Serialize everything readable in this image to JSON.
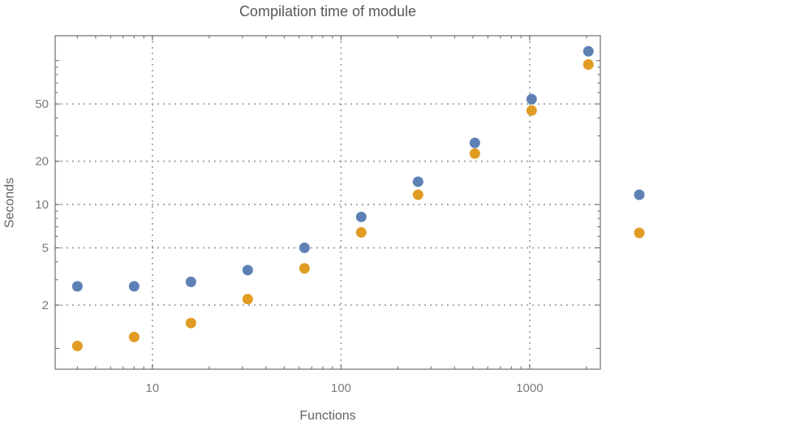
{
  "chart_data": {
    "type": "scatter",
    "title": "Compilation time of module",
    "xlabel": "Functions",
    "ylabel": "Seconds",
    "xscale": "log",
    "yscale": "log",
    "xlim": [
      3.05,
      2370
    ],
    "ylim": [
      0.717,
      149
    ],
    "grid": "dotted lines at labeled major ticks",
    "x": [
      4,
      8,
      16,
      32,
      64,
      128,
      256,
      512,
      1024,
      2048
    ],
    "series": [
      {
        "name": "series-blue",
        "color": "#5e81b5",
        "marker": "filled-circle",
        "values": [
          2.7,
          2.7,
          2.9,
          3.5,
          5.0,
          8.2,
          14.4,
          26.8,
          54,
          116
        ]
      },
      {
        "name": "series-orange",
        "color": "#e19c24",
        "marker": "filled-circle",
        "values": [
          1.04,
          1.2,
          1.5,
          2.2,
          3.6,
          6.4,
          11.7,
          22.6,
          45,
          94
        ]
      }
    ],
    "x_ticks": {
      "major": [
        10,
        100,
        1000
      ],
      "labels": [
        "10",
        "100",
        "1000"
      ],
      "minor": [
        4,
        5,
        6,
        7,
        8,
        9,
        20,
        30,
        40,
        50,
        60,
        70,
        80,
        90,
        200,
        300,
        400,
        500,
        600,
        700,
        800,
        900,
        2000
      ]
    },
    "y_ticks": {
      "major": [
        2,
        5,
        10,
        20,
        50
      ],
      "labels": [
        "2",
        "5",
        "10",
        "20",
        "50"
      ],
      "unlabeled_major": [
        1,
        100
      ],
      "minor": [
        3,
        4,
        6,
        7,
        8,
        9,
        30,
        40,
        60,
        70,
        80,
        90
      ]
    },
    "legend": {
      "position": "outside-right",
      "entries": [
        {
          "label": "",
          "color": "#5e81b5"
        },
        {
          "label": "",
          "color": "#e19c24"
        }
      ]
    }
  },
  "styles": {
    "background": "#ffffff",
    "frame_color": "#6e6e6e",
    "grid_color": "#979797",
    "tick_label_color": "#7a7a7a",
    "title_color": "#585858",
    "axis_label_color": "#636363"
  }
}
